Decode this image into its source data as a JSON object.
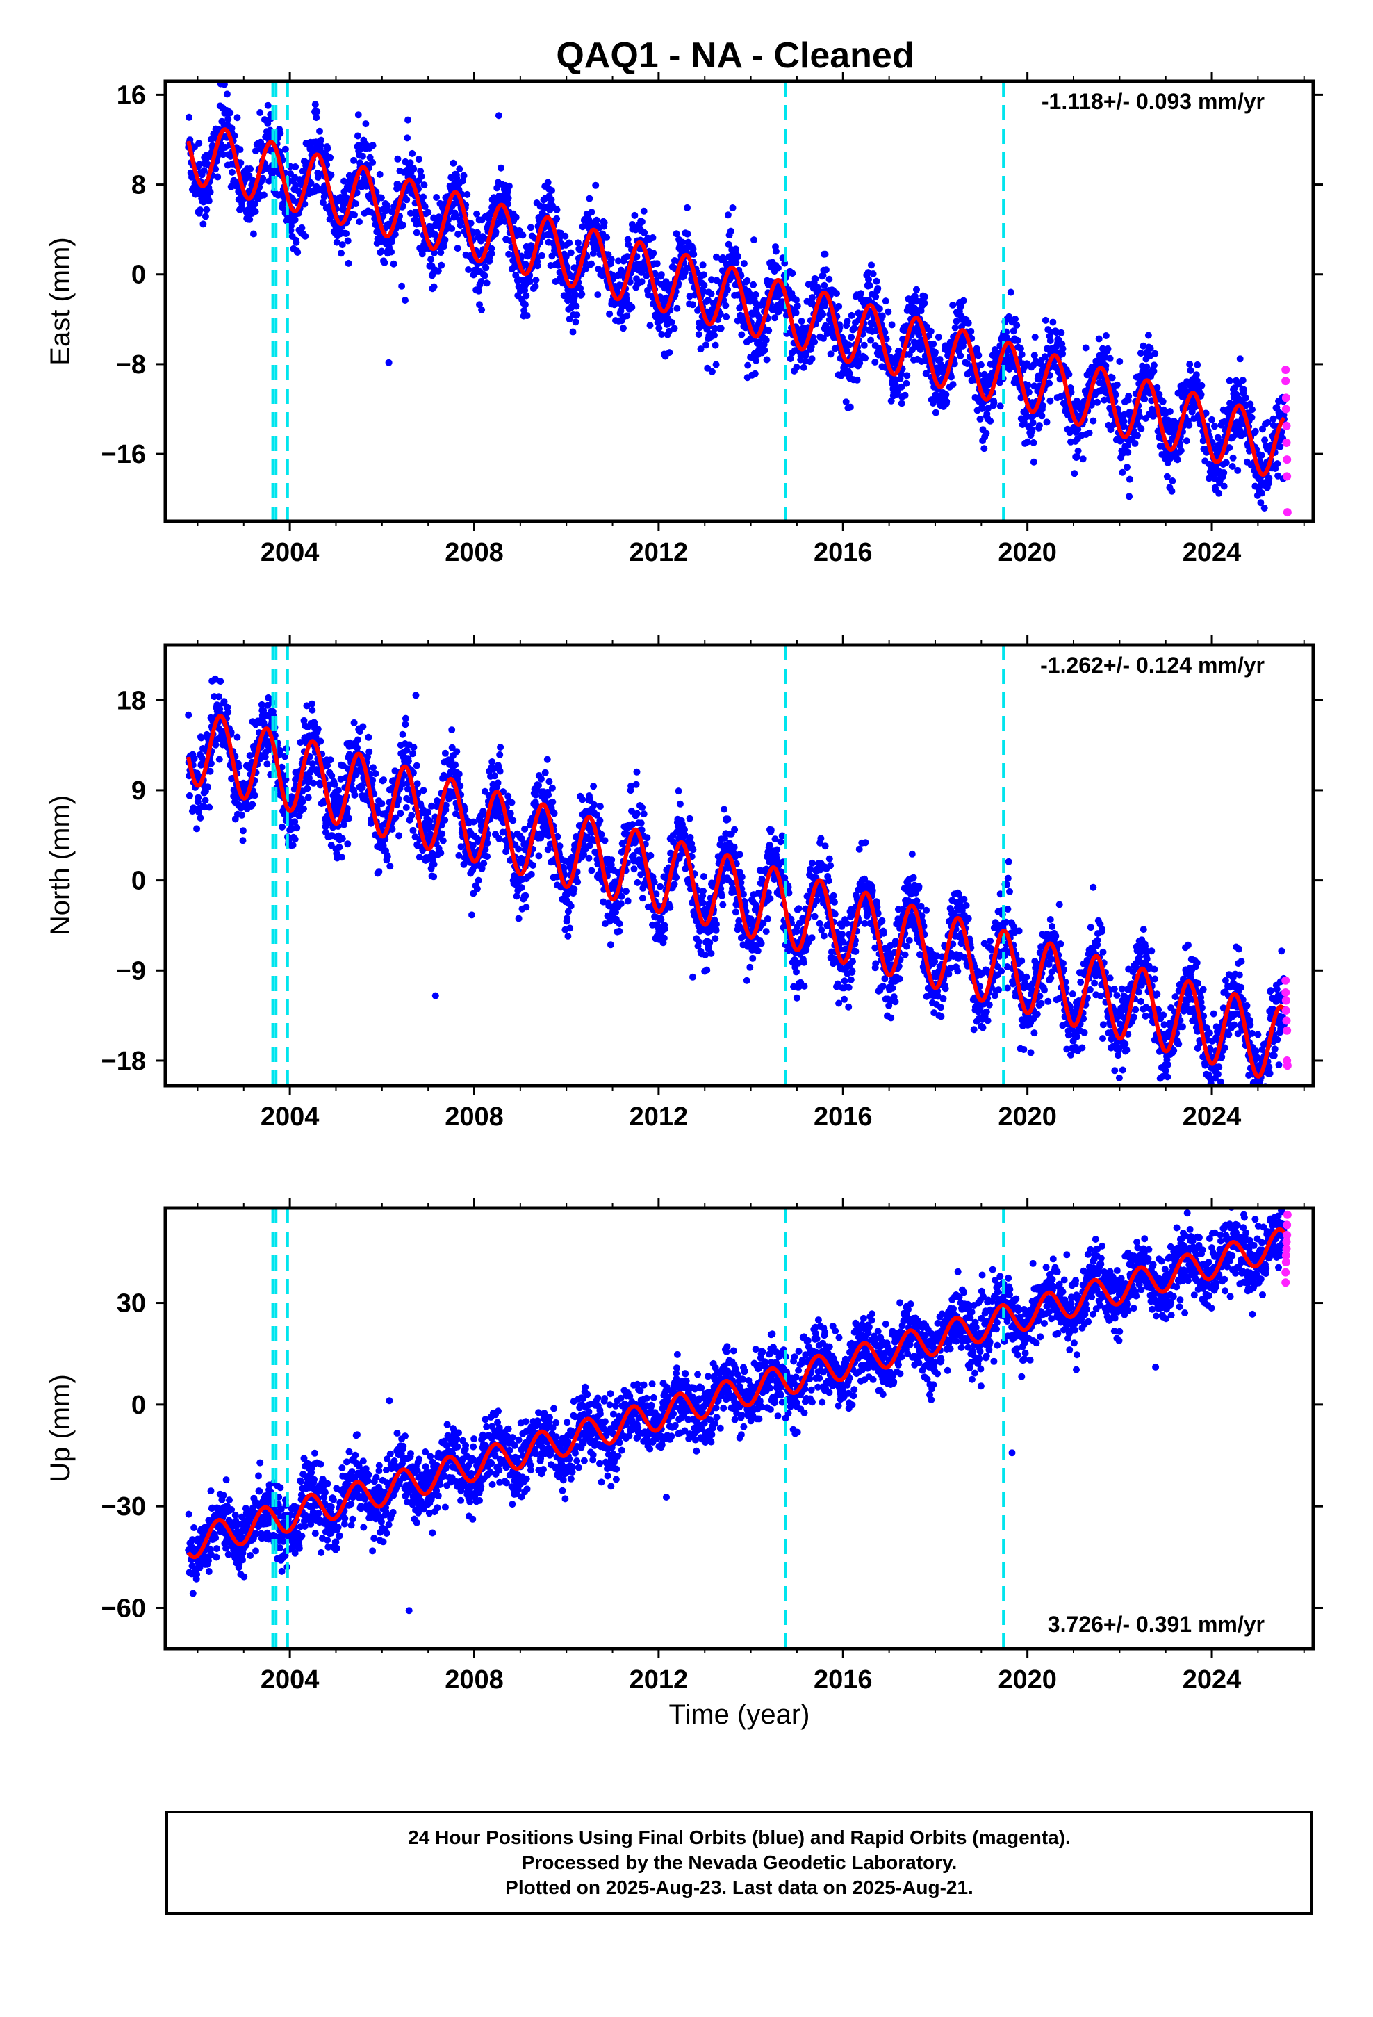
{
  "title": "QAQ1  - NA - Cleaned",
  "xlabel": "Time (year)",
  "caption": [
    "24 Hour Positions Using Final Orbits (blue) and Rapid Orbits (magenta).",
    "Processed by the Nevada Geodetic Laboratory.",
    "Plotted on 2025-Aug-23. Last data on 2025-Aug-21."
  ],
  "colors": {
    "final": "#0000ff",
    "rapid": "#ff22ff",
    "model": "#ff0000",
    "steps": "#00e5ee"
  },
  "chart_data": [
    {
      "type": "scatter",
      "ylabel": "East (mm)",
      "rate_text": "-1.118+/- 0.093 mm/yr",
      "rate_position": "top-right",
      "x_ticks": [
        2004,
        2008,
        2012,
        2016,
        2020,
        2024
      ],
      "xlim": [
        2001.3,
        2026.2
      ],
      "y_ticks": [
        16,
        8,
        0,
        -8,
        -16
      ],
      "ylim": [
        -22,
        17.2
      ],
      "grid": false,
      "step_lines": [
        2003.63,
        2003.7,
        2003.95,
        2014.75,
        2019.48
      ],
      "model": {
        "t0": 2001.8,
        "v0": 11.0,
        "rate": -1.118,
        "seasonal_amp": 2.8,
        "peak_phase": 0.6
      },
      "final": {
        "start": 2001.8,
        "end": 2025.57,
        "noise": 1.7
      },
      "rapid": {
        "x": [
          2025.6,
          2025.6,
          2025.61,
          2025.61,
          2025.62,
          2025.62,
          2025.63,
          2025.63,
          2025.64
        ],
        "y": [
          -8.5,
          -9.5,
          -11.0,
          -12.0,
          -13.5,
          -15.0,
          -16.5,
          -18.0,
          -21.2
        ]
      }
    },
    {
      "type": "scatter",
      "ylabel": "North (mm)",
      "rate_text": "-1.262+/- 0.124 mm/yr",
      "rate_position": "top-right",
      "x_ticks": [
        2004,
        2008,
        2012,
        2016,
        2020,
        2024
      ],
      "xlim": [
        2001.3,
        2026.2
      ],
      "y_ticks": [
        18,
        9,
        0,
        -9,
        -18
      ],
      "ylim": [
        -20.5,
        23.5
      ],
      "grid": false,
      "step_lines": [
        2003.63,
        2003.7,
        2003.95,
        2014.75,
        2019.48
      ],
      "model": {
        "t0": 2001.8,
        "v0": 13.5,
        "rate": -1.262,
        "seasonal_amp": 3.8,
        "peak_phase": 0.5
      },
      "final": {
        "start": 2001.8,
        "end": 2025.57,
        "noise": 2.0
      },
      "rapid": {
        "x": [
          2025.6,
          2025.6,
          2025.61,
          2025.61,
          2025.62,
          2025.63,
          2025.63,
          2025.64
        ],
        "y": [
          -10.0,
          -11.2,
          -12.0,
          -13.0,
          -14.0,
          -15.0,
          -18.0,
          -18.5
        ]
      }
    },
    {
      "type": "scatter",
      "ylabel": "Up (mm)",
      "rate_text": "3.726+/- 0.391 mm/yr",
      "rate_position": "bottom-right",
      "x_ticks": [
        2004,
        2008,
        2012,
        2016,
        2020,
        2024
      ],
      "xlim": [
        2001.3,
        2026.2
      ],
      "y_ticks": [
        30,
        0,
        -30,
        -60
      ],
      "ylim": [
        -72,
        58
      ],
      "grid": false,
      "step_lines": [
        2003.63,
        2003.7,
        2003.95,
        2014.75,
        2019.48
      ],
      "model": {
        "t0": 2001.8,
        "v0": -41.0,
        "rate": 3.726,
        "seasonal_amp": 4.5,
        "peak_phase": 0.45
      },
      "final": {
        "start": 2001.8,
        "end": 2025.57,
        "noise": 5.0
      },
      "rapid": {
        "x": [
          2025.6,
          2025.6,
          2025.61,
          2025.61,
          2025.62,
          2025.62,
          2025.63,
          2025.63,
          2025.64
        ],
        "y": [
          36,
          39,
          42,
          44,
          46,
          48,
          50,
          53,
          56
        ]
      }
    }
  ]
}
